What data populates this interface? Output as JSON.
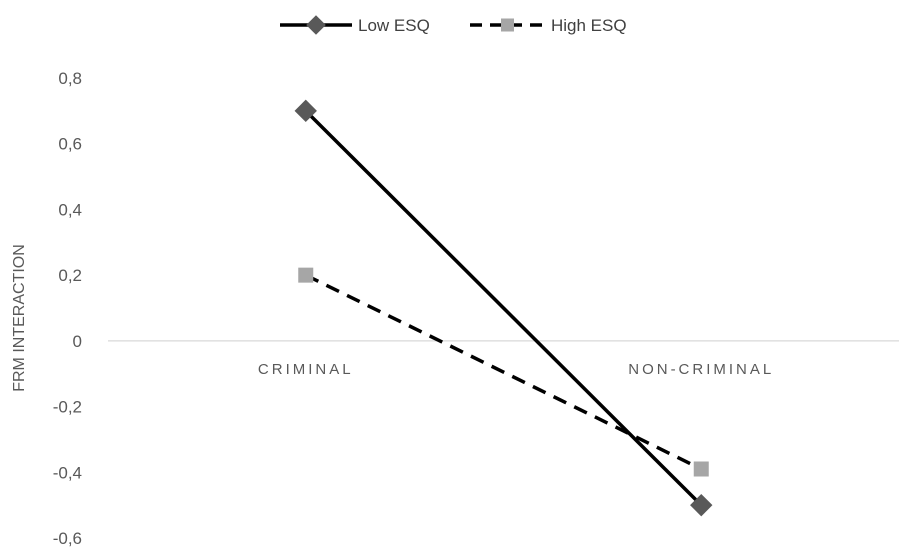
{
  "chart_data": {
    "type": "line",
    "title": "",
    "xlabel": "",
    "ylabel": "FRM INTERACTION",
    "categories": [
      "CRIMINAL",
      "NON-CRIMINAL"
    ],
    "ylim": [
      -0.6,
      0.8
    ],
    "yticks": [
      "0,8",
      "0,6",
      "0,4",
      "0,2",
      "0",
      "-0,2",
      "-0,4",
      "-0,6"
    ],
    "ytick_values": [
      0.8,
      0.6,
      0.4,
      0.2,
      0,
      -0.2,
      -0.4,
      -0.6
    ],
    "legend_position": "top",
    "grid": false,
    "series": [
      {
        "name": "Low ESQ",
        "values": [
          0.7,
          -0.5
        ],
        "color": "#000000",
        "marker": "diamond",
        "marker_color": "#595959",
        "line_style": "solid"
      },
      {
        "name": "High ESQ",
        "values": [
          0.2,
          -0.39
        ],
        "color": "#000000",
        "marker": "square",
        "marker_color": "#a6a6a6",
        "line_style": "dashed"
      }
    ]
  }
}
